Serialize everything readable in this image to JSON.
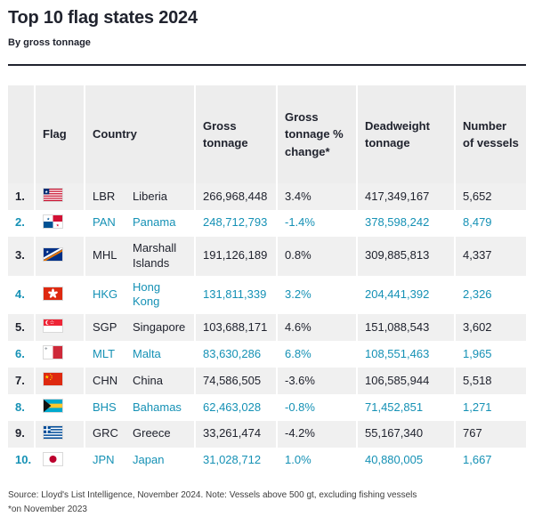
{
  "chart_data": {
    "type": "table",
    "title": "Top 10 flag states 2024",
    "subtitle": "By gross tonnage",
    "headers": {
      "rank": "",
      "flag": "Flag",
      "country": "Country",
      "gross_tonnage": "Gross tonnage",
      "gross_tonnage_change": "Gross tonnage % change*",
      "deadweight_tonnage": "Deadweight tonnage",
      "vessels": "Number of vessels"
    },
    "rows": [
      {
        "rank": "1.",
        "flag_icon": "liberia-flag-icon",
        "code": "LBR",
        "country": "Liberia",
        "gross_tonnage": "266,968,448",
        "gross_tonnage_change": "3.4%",
        "deadweight_tonnage": "417,349,167",
        "vessels": "5,652"
      },
      {
        "rank": "2.",
        "flag_icon": "panama-flag-icon",
        "code": "PAN",
        "country": "Panama",
        "gross_tonnage": "248,712,793",
        "gross_tonnage_change": "-1.4%",
        "deadweight_tonnage": "378,598,242",
        "vessels": "8,479"
      },
      {
        "rank": "3.",
        "flag_icon": "marshall-islands-flag-icon",
        "code": "MHL",
        "country": "Marshall Islands",
        "gross_tonnage": "191,126,189",
        "gross_tonnage_change": "0.8%",
        "deadweight_tonnage": "309,885,813",
        "vessels": "4,337"
      },
      {
        "rank": "4.",
        "flag_icon": "hong-kong-flag-icon",
        "code": "HKG",
        "country": "Hong Kong",
        "gross_tonnage": "131,811,339",
        "gross_tonnage_change": "3.2%",
        "deadweight_tonnage": "204,441,392",
        "vessels": "2,326"
      },
      {
        "rank": "5.",
        "flag_icon": "singapore-flag-icon",
        "code": "SGP",
        "country": "Singapore",
        "gross_tonnage": "103,688,171",
        "gross_tonnage_change": "4.6%",
        "deadweight_tonnage": "151,088,543",
        "vessels": "3,602"
      },
      {
        "rank": "6.",
        "flag_icon": "malta-flag-icon",
        "code": "MLT",
        "country": "Malta",
        "gross_tonnage": "83,630,286",
        "gross_tonnage_change": "6.8%",
        "deadweight_tonnage": "108,551,463",
        "vessels": "1,965"
      },
      {
        "rank": "7.",
        "flag_icon": "china-flag-icon",
        "code": "CHN",
        "country": "China",
        "gross_tonnage": "74,586,505",
        "gross_tonnage_change": "-3.6%",
        "deadweight_tonnage": "106,585,944",
        "vessels": "5,518"
      },
      {
        "rank": "8.",
        "flag_icon": "bahamas-flag-icon",
        "code": "BHS",
        "country": "Bahamas",
        "gross_tonnage": "62,463,028",
        "gross_tonnage_change": "-0.8%",
        "deadweight_tonnage": "71,452,851",
        "vessels": "1,271"
      },
      {
        "rank": "9.",
        "flag_icon": "greece-flag-icon",
        "code": "GRC",
        "country": "Greece",
        "gross_tonnage": "33,261,474",
        "gross_tonnage_change": "-4.2%",
        "deadweight_tonnage": "55,167,340",
        "vessels": "767"
      },
      {
        "rank": "10.",
        "flag_icon": "japan-flag-icon",
        "code": "JPN",
        "country": "Japan",
        "gross_tonnage": "31,028,712",
        "gross_tonnage_change": "1.0%",
        "deadweight_tonnage": "40,880,005",
        "vessels": "1,667"
      }
    ]
  },
  "footer": {
    "source": "Source: Lloyd's List Intelligence, November 2024. Note: Vessels above 500 gt, excluding fishing vessels",
    "note": "*on November 2023"
  },
  "colors": {
    "text_dark": "#20232e",
    "accent_teal": "#1591b5",
    "row_alt_bg": "#f0f0f0",
    "header_bg": "#ededed"
  }
}
